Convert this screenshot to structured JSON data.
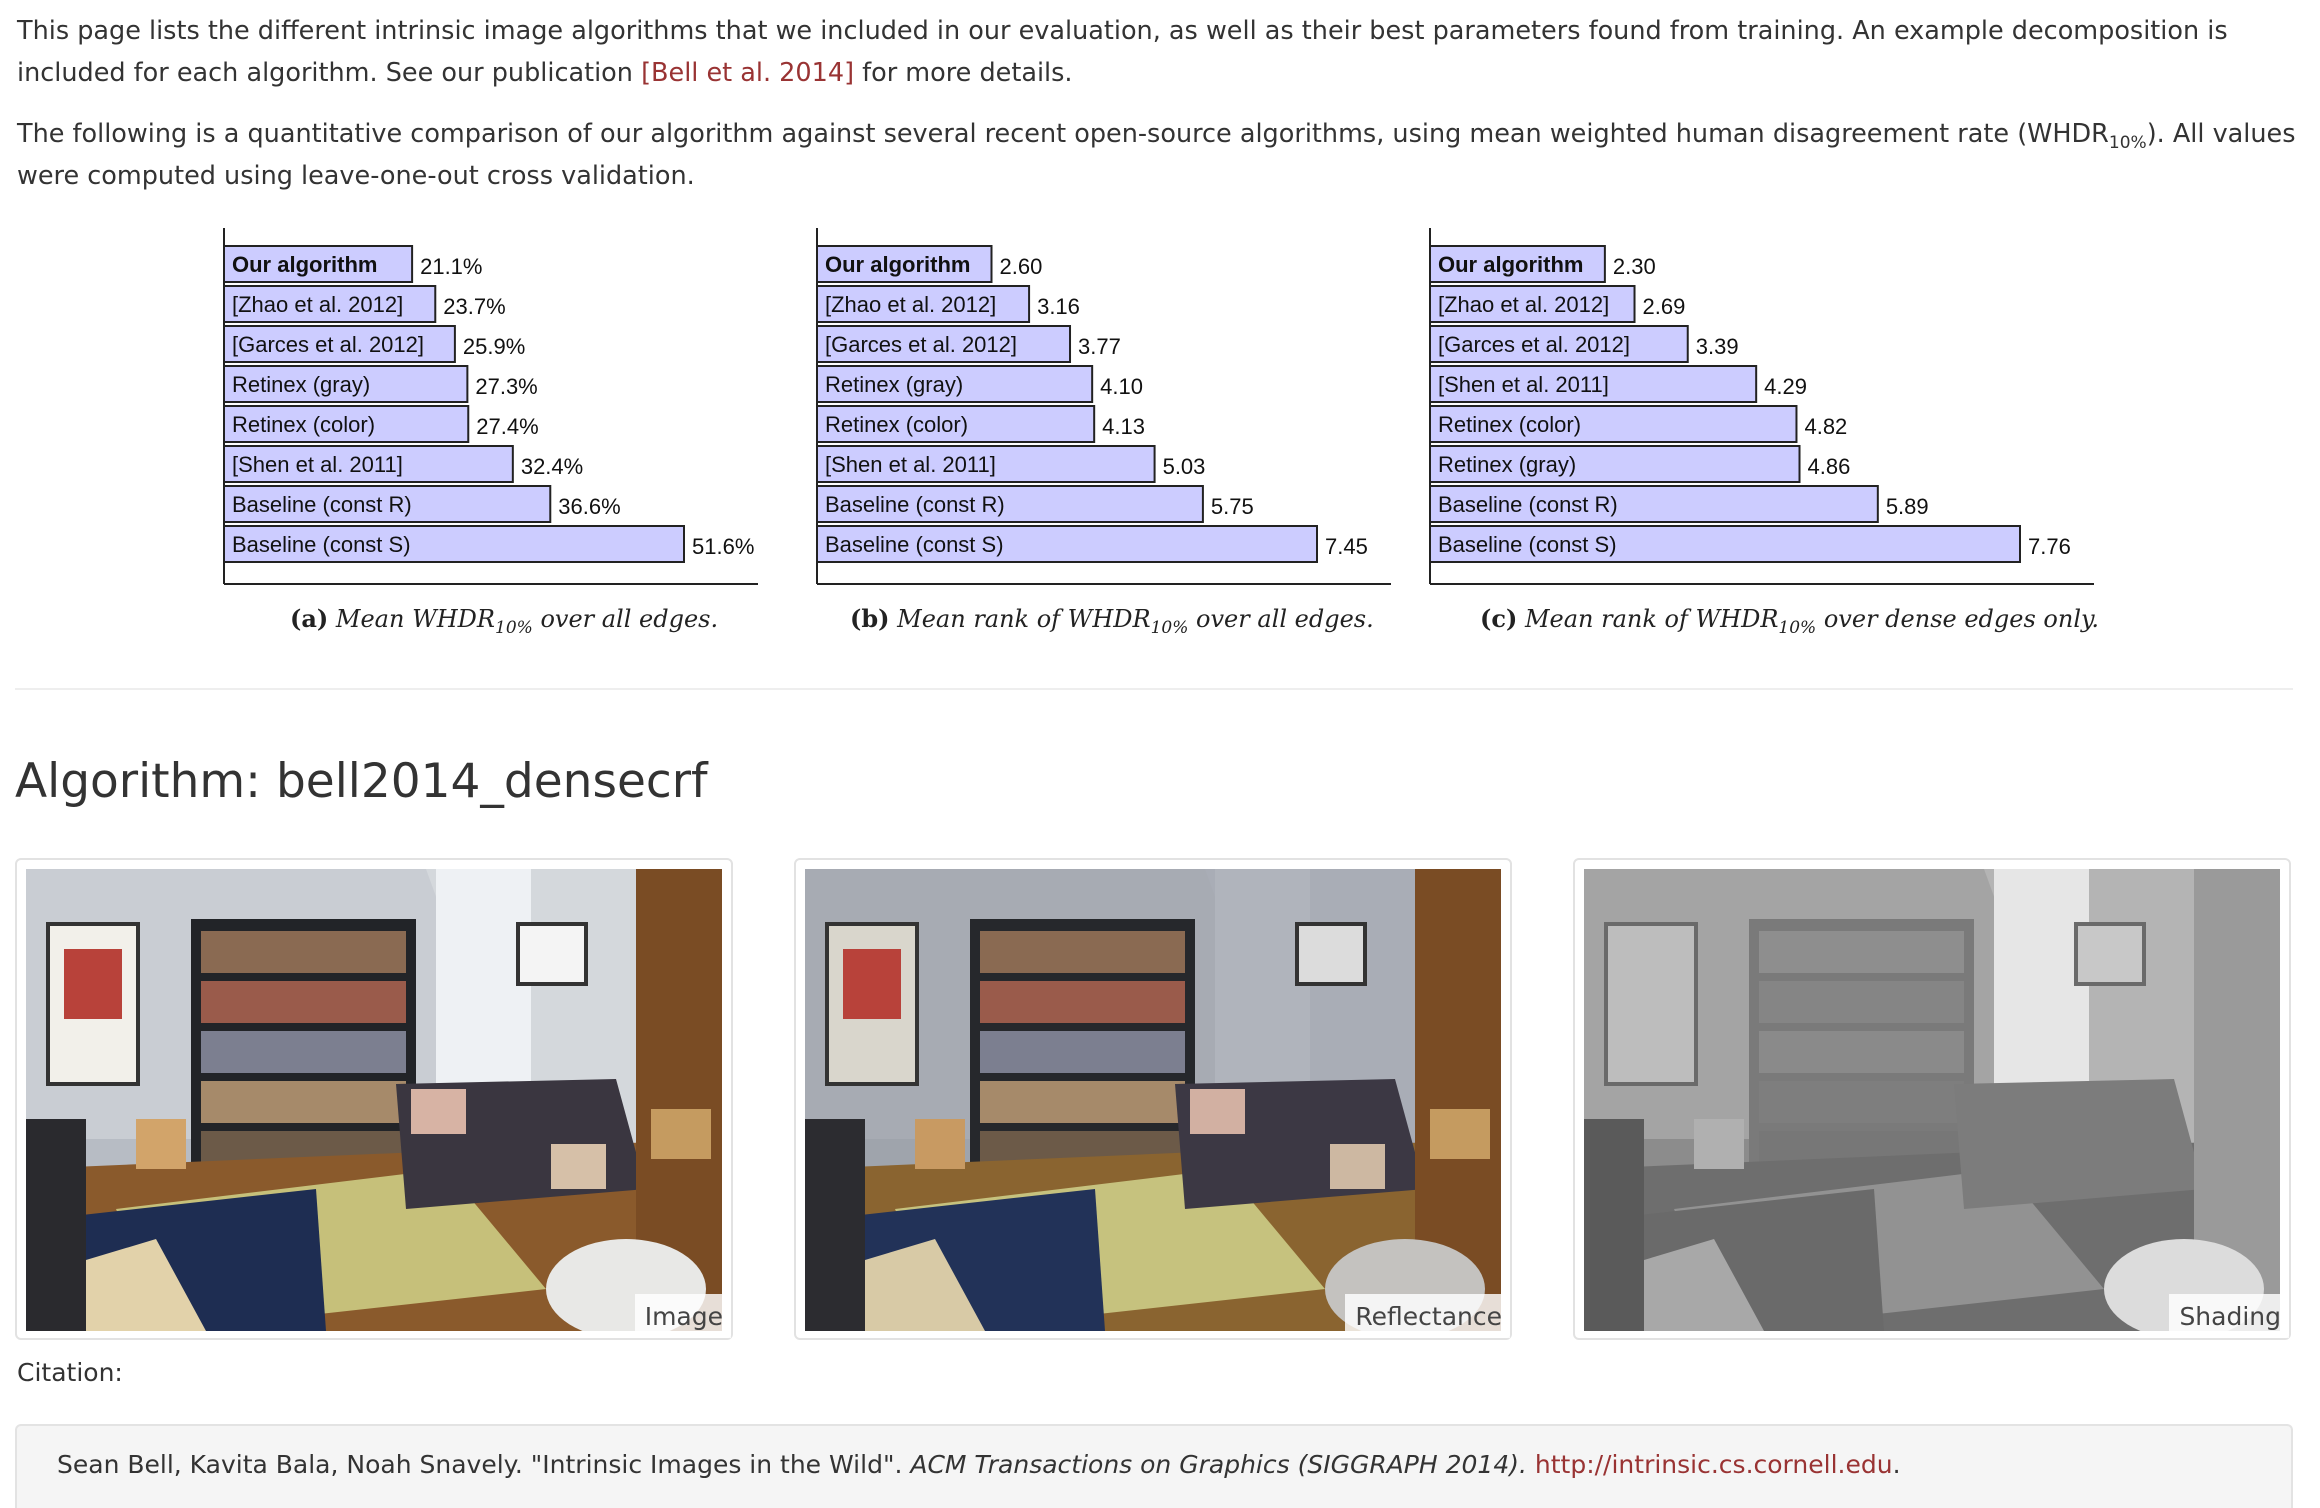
{
  "intro": {
    "p1_text": "This page lists the different intrinsic image algorithms that we included in our evaluation, as well as their best parameters found from training. An example decomposition is included for each algorithm. See our publication",
    "p1_link": "[Bell et al. 2014]",
    "p1_end": "for more details.",
    "p2_text": "The following is a quantitative comparison of our algorithm against several recent open-source algorithms, using mean weighted human disagreement rate (WHDR",
    "p2_sub": "10%",
    "p2_end": "). All values were computed using leave-one-out cross validation."
  },
  "chart_data": [
    {
      "type": "bar",
      "orientation": "horizontal",
      "categories": [
        "Our algorithm",
        "[Zhao et al. 2012]",
        "[Garces et al. 2012]",
        "Retinex (gray)",
        "Retinex (color)",
        "[Shen et al. 2011]",
        "Baseline (const R)",
        "Baseline (const S)"
      ],
      "values": [
        21.1,
        23.7,
        25.9,
        27.3,
        27.4,
        32.4,
        36.6,
        51.6
      ],
      "value_labels": [
        "21.1%",
        "23.7%",
        "25.9%",
        "27.3%",
        "27.4%",
        "32.4%",
        "36.6%",
        "51.6%"
      ],
      "caption_letter": "(a)",
      "caption_text": "Mean WHDR",
      "caption_sub": "10%",
      "caption_end": "over all edges.",
      "bar_color": "#ccccff"
    },
    {
      "type": "bar",
      "orientation": "horizontal",
      "categories": [
        "Our algorithm",
        "[Zhao et al. 2012]",
        "[Garces et al. 2012]",
        "Retinex (gray)",
        "Retinex (color)",
        "[Shen et al. 2011]",
        "Baseline (const R)",
        "Baseline (const S)"
      ],
      "values": [
        2.6,
        3.16,
        3.77,
        4.1,
        4.13,
        5.03,
        5.75,
        7.45
      ],
      "value_labels": [
        "2.60",
        "3.16",
        "3.77",
        "4.10",
        "4.13",
        "5.03",
        "5.75",
        "7.45"
      ],
      "caption_letter": "(b)",
      "caption_text": "Mean rank of WHDR",
      "caption_sub": "10%",
      "caption_end": "over all edges.",
      "bar_color": "#ccccff"
    },
    {
      "type": "bar",
      "orientation": "horizontal",
      "categories": [
        "Our algorithm",
        "[Zhao et al. 2012]",
        "[Garces et al. 2012]",
        "[Shen et al. 2011]",
        "Retinex (color)",
        "Retinex (gray)",
        "Baseline (const R)",
        "Baseline (const S)"
      ],
      "values": [
        2.3,
        2.69,
        3.39,
        4.29,
        4.82,
        4.86,
        5.89,
        7.76
      ],
      "value_labels": [
        "2.30",
        "2.69",
        "3.39",
        "4.29",
        "4.82",
        "4.86",
        "5.89",
        "7.76"
      ],
      "caption_letter": "(c)",
      "caption_text": "Mean rank of WHDR",
      "caption_sub": "10%",
      "caption_end": "over dense edges only.",
      "bar_color": "#ccccff"
    }
  ],
  "algorithm": {
    "title": "Algorithm: bell2014_densecrf",
    "images": [
      {
        "label": "Image"
      },
      {
        "label": "Reflectance"
      },
      {
        "label": "Shading"
      }
    ]
  },
  "citation": {
    "label": "Citation:",
    "authors": "Sean Bell, Kavita Bala, Noah Snavely. \"Intrinsic Images in the Wild\".",
    "venue": "ACM Transactions on Graphics (SIGGRAPH 2014).",
    "url": "http://intrinsic.cs.cornell.edu",
    "end": "."
  }
}
